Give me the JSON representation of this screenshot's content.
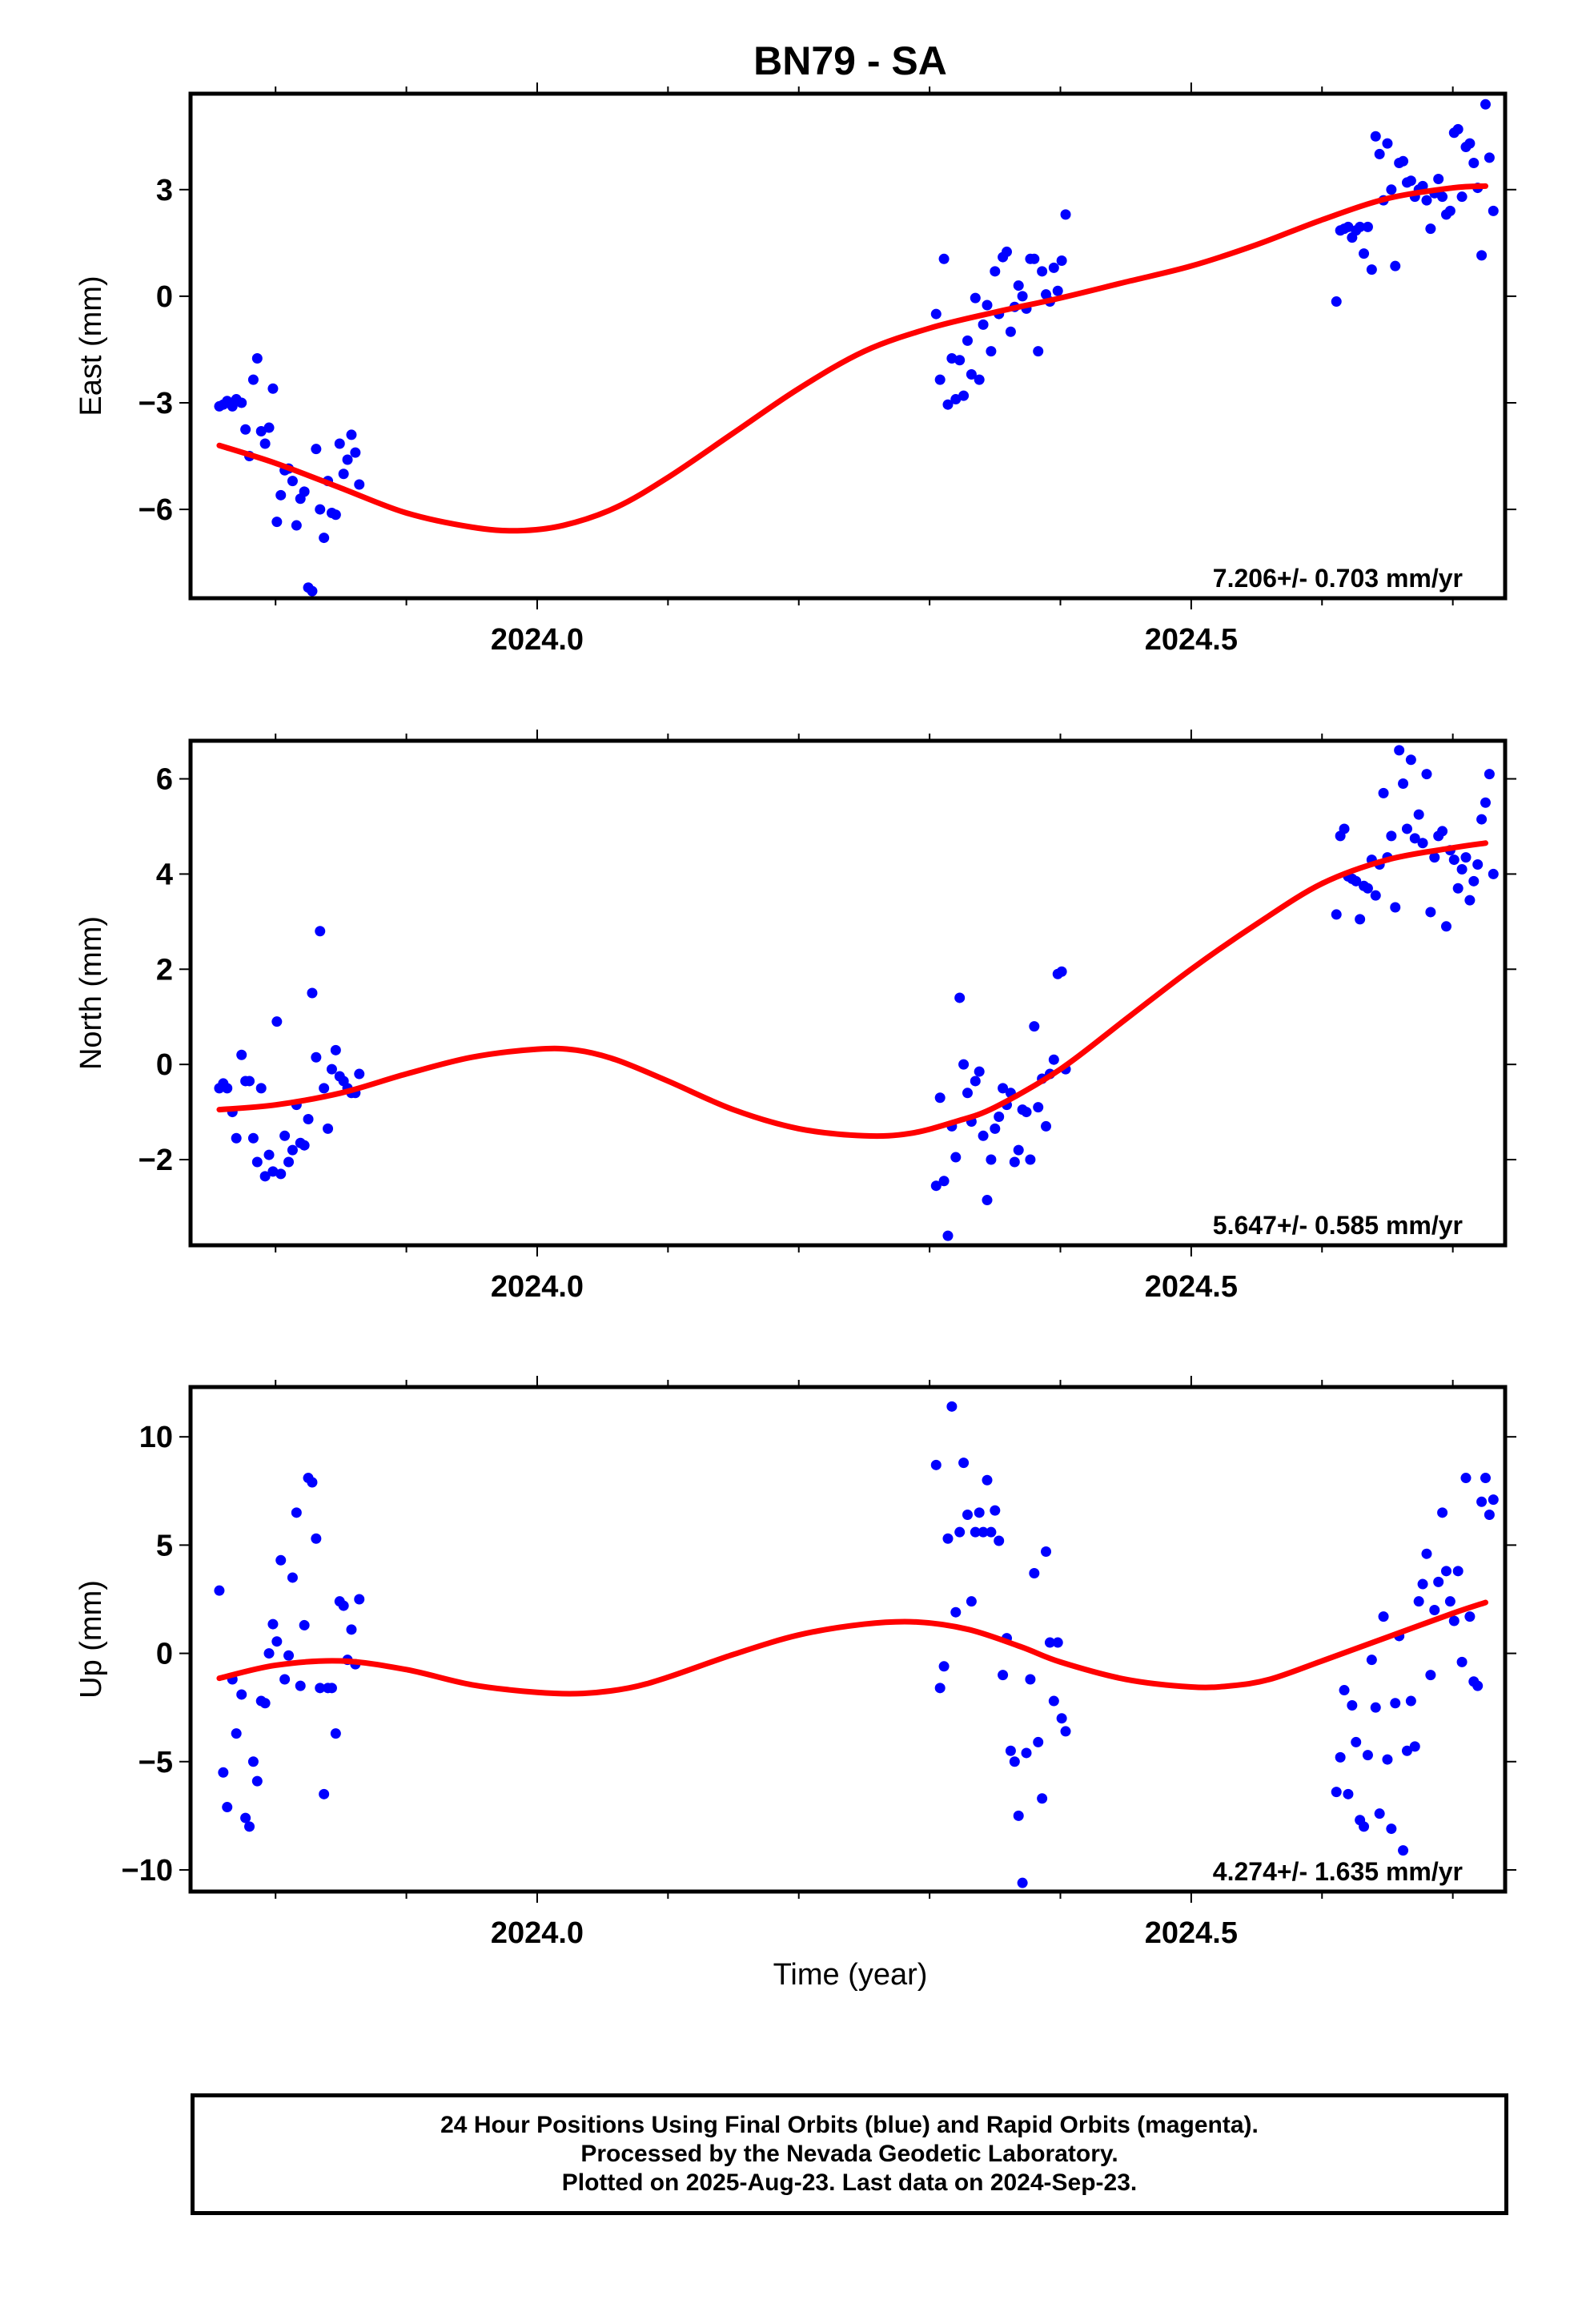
{
  "title": "BN79 - SA",
  "xlabel": "Time (year)",
  "caption": [
    "24 Hour Positions Using Final Orbits (blue) and Rapid Orbits (magenta).",
    "Processed by the Nevada Geodetic Laboratory.",
    "Plotted on 2025-Aug-23. Last data on 2024-Sep-23."
  ],
  "colors": {
    "data": "#0000ff",
    "model": "#ff0000",
    "axes": "#000000"
  },
  "chart_data": [
    {
      "type": "scatter",
      "ylabel": "East (mm)",
      "xlim": [
        2023.735,
        2024.74
      ],
      "ylim": [
        -8.5,
        5.7
      ],
      "xticks": [
        2024.0,
        2024.5
      ],
      "yticks": [
        -6,
        -3,
        0,
        3
      ],
      "ytick_labels": [
        "−6",
        "−3",
        "0",
        "3"
      ],
      "rate_label": "7.206+/- 0.703 mm/yr",
      "model": {
        "x": [
          2023.757,
          2023.8,
          2023.85,
          2023.9,
          2023.95,
          2023.985,
          2024.02,
          2024.06,
          2024.1,
          2024.15,
          2024.2,
          2024.25,
          2024.3,
          2024.35,
          2024.4,
          2024.45,
          2024.5,
          2024.55,
          2024.6,
          2024.65,
          2024.7,
          2024.725
        ],
        "y": [
          -4.2,
          -4.7,
          -5.4,
          -6.1,
          -6.5,
          -6.6,
          -6.45,
          -5.95,
          -5.1,
          -3.85,
          -2.6,
          -1.55,
          -0.9,
          -0.45,
          -0.05,
          0.4,
          0.85,
          1.45,
          2.15,
          2.75,
          3.05,
          3.1
        ]
      },
      "x": [
        2023.757,
        2023.76,
        2023.763,
        2023.767,
        2023.77,
        2023.774,
        2023.777,
        2023.78,
        2023.783,
        2023.786,
        2023.789,
        2023.792,
        2023.795,
        2023.798,
        2023.801,
        2023.804,
        2023.807,
        2023.81,
        2023.813,
        2023.816,
        2023.819,
        2023.822,
        2023.825,
        2023.828,
        2023.831,
        2023.834,
        2023.837,
        2023.84,
        2023.843,
        2023.846,
        2023.849,
        2023.852,
        2023.855,
        2023.858,
        2023.861,
        2023.864,
        2024.305,
        2024.308,
        2024.311,
        2024.314,
        2024.317,
        2024.32,
        2024.323,
        2024.326,
        2024.329,
        2024.332,
        2024.335,
        2024.338,
        2024.341,
        2024.344,
        2024.347,
        2024.35,
        2024.353,
        2024.356,
        2024.359,
        2024.362,
        2024.365,
        2024.368,
        2024.371,
        2024.374,
        2024.377,
        2024.38,
        2024.383,
        2024.386,
        2024.389,
        2024.392,
        2024.395,
        2024.398,
        2024.401,
        2024.404,
        2024.611,
        2024.614,
        2024.617,
        2024.62,
        2024.623,
        2024.626,
        2024.629,
        2024.632,
        2024.635,
        2024.638,
        2024.641,
        2024.644,
        2024.647,
        2024.65,
        2024.653,
        2024.656,
        2024.659,
        2024.662,
        2024.665,
        2024.668,
        2024.671,
        2024.674,
        2024.677,
        2024.68,
        2024.683,
        2024.686,
        2024.689,
        2024.692,
        2024.695,
        2024.698,
        2024.701,
        2024.704,
        2024.707,
        2024.71,
        2024.713,
        2024.716,
        2024.719,
        2024.722,
        2024.725,
        2024.728,
        2024.731
      ],
      "y": [
        -3.1,
        -3.05,
        -2.95,
        -3.1,
        -2.9,
        -3.0,
        -3.75,
        -4.5,
        -2.35,
        -1.75,
        -3.8,
        -4.15,
        -3.7,
        -2.6,
        -6.35,
        -5.6,
        -4.9,
        -4.85,
        -5.2,
        -6.45,
        -5.7,
        -5.5,
        -8.2,
        -8.3,
        -4.3,
        -6.0,
        -6.8,
        -5.2,
        -6.1,
        -6.15,
        -4.15,
        -5.0,
        -4.6,
        -3.9,
        -4.4,
        -5.3,
        -0.5,
        -2.35,
        1.05,
        -3.05,
        -1.75,
        -2.9,
        -1.8,
        -2.8,
        -1.25,
        -2.2,
        -0.05,
        -2.35,
        -0.8,
        -0.25,
        -1.55,
        0.7,
        -0.5,
        1.1,
        1.25,
        -1.0,
        -0.3,
        0.3,
        0.0,
        -0.35,
        1.05,
        1.05,
        -1.55,
        0.7,
        0.05,
        -0.15,
        0.8,
        0.15,
        1.0,
        2.3,
        -0.15,
        1.85,
        1.9,
        1.95,
        1.65,
        1.85,
        1.95,
        1.2,
        1.95,
        0.75,
        4.5,
        4.0,
        2.7,
        4.3,
        3.0,
        0.85,
        3.75,
        3.8,
        3.2,
        3.25,
        2.8,
        3.0,
        3.1,
        2.7,
        1.9,
        2.9,
        3.3,
        2.8,
        2.3,
        2.4,
        4.6,
        4.7,
        2.8,
        4.2,
        4.3,
        3.75,
        3.05,
        1.15,
        5.4,
        3.9,
        2.4
      ],
      "markers": "dots"
    },
    {
      "type": "scatter",
      "ylabel": "North (mm)",
      "xlim": [
        2023.735,
        2024.74
      ],
      "ylim": [
        -3.8,
        6.8
      ],
      "xticks": [
        2024.0,
        2024.5
      ],
      "yticks": [
        -2,
        0,
        2,
        4,
        6
      ],
      "ytick_labels": [
        "−2",
        "0",
        "2",
        "4",
        "6"
      ],
      "rate_label": "5.647+/- 0.585 mm/yr",
      "model": {
        "x": [
          2023.757,
          2023.8,
          2023.85,
          2023.9,
          2023.95,
          2024.0,
          2024.03,
          2024.06,
          2024.1,
          2024.15,
          2024.2,
          2024.25,
          2024.285,
          2024.32,
          2024.35,
          2024.4,
          2024.45,
          2024.5,
          2024.55,
          2024.6,
          2024.65,
          2024.7,
          2024.725
        ],
        "y": [
          -0.95,
          -0.85,
          -0.6,
          -0.2,
          0.15,
          0.32,
          0.3,
          0.1,
          -0.35,
          -0.95,
          -1.35,
          -1.5,
          -1.45,
          -1.2,
          -0.9,
          -0.1,
          0.95,
          2.0,
          2.95,
          3.8,
          4.3,
          4.55,
          4.65
        ]
      },
      "x": [
        2023.757,
        2023.76,
        2023.763,
        2023.767,
        2023.77,
        2023.774,
        2023.777,
        2023.78,
        2023.783,
        2023.786,
        2023.789,
        2023.792,
        2023.795,
        2023.798,
        2023.801,
        2023.804,
        2023.807,
        2023.81,
        2023.813,
        2023.816,
        2023.819,
        2023.822,
        2023.825,
        2023.828,
        2023.831,
        2023.834,
        2023.837,
        2023.84,
        2023.843,
        2023.846,
        2023.849,
        2023.852,
        2023.855,
        2023.858,
        2023.861,
        2023.864,
        2024.305,
        2024.308,
        2024.311,
        2024.314,
        2024.317,
        2024.32,
        2024.323,
        2024.326,
        2024.329,
        2024.332,
        2024.335,
        2024.338,
        2024.341,
        2024.344,
        2024.347,
        2024.35,
        2024.353,
        2024.356,
        2024.359,
        2024.362,
        2024.365,
        2024.368,
        2024.371,
        2024.374,
        2024.377,
        2024.38,
        2024.383,
        2024.386,
        2024.389,
        2024.392,
        2024.395,
        2024.398,
        2024.401,
        2024.404,
        2024.611,
        2024.614,
        2024.617,
        2024.62,
        2024.623,
        2024.626,
        2024.629,
        2024.632,
        2024.635,
        2024.638,
        2024.641,
        2024.644,
        2024.647,
        2024.65,
        2024.653,
        2024.656,
        2024.659,
        2024.662,
        2024.665,
        2024.668,
        2024.671,
        2024.674,
        2024.677,
        2024.68,
        2024.683,
        2024.686,
        2024.689,
        2024.692,
        2024.695,
        2024.698,
        2024.701,
        2024.704,
        2024.707,
        2024.71,
        2024.713,
        2024.716,
        2024.719,
        2024.722,
        2024.725,
        2024.728,
        2024.731
      ],
      "y": [
        -0.5,
        -0.4,
        -0.5,
        -1.0,
        -1.55,
        0.2,
        -0.35,
        -0.35,
        -1.55,
        -2.05,
        -0.5,
        -2.35,
        -1.9,
        -2.25,
        0.9,
        -2.3,
        -1.5,
        -2.05,
        -1.8,
        -0.85,
        -1.65,
        -1.7,
        -1.15,
        1.5,
        0.15,
        2.8,
        -0.5,
        -1.35,
        -0.1,
        0.3,
        -0.25,
        -0.35,
        -0.5,
        -0.6,
        -0.6,
        -0.2,
        -2.55,
        -0.7,
        -2.45,
        -3.6,
        -1.3,
        -1.95,
        1.4,
        0.0,
        -0.6,
        -1.2,
        -0.35,
        -0.15,
        -1.5,
        -2.85,
        -2.0,
        -1.35,
        -1.1,
        -0.5,
        -0.85,
        -0.6,
        -2.05,
        -1.8,
        -0.95,
        -1.0,
        -2.0,
        0.8,
        -0.9,
        -0.3,
        -1.3,
        -0.2,
        0.1,
        1.9,
        1.95,
        -0.1,
        3.15,
        4.8,
        4.95,
        3.95,
        3.9,
        3.85,
        3.05,
        3.75,
        3.7,
        4.3,
        3.55,
        4.2,
        5.7,
        4.35,
        4.8,
        3.3,
        6.6,
        5.9,
        4.95,
        6.4,
        4.75,
        5.25,
        4.65,
        6.1,
        3.2,
        4.35,
        4.8,
        4.9,
        2.9,
        4.5,
        4.3,
        3.7,
        4.1,
        4.35,
        3.45,
        3.85,
        4.2,
        5.15,
        5.5,
        6.1,
        4.0
      ],
      "markers": "dots"
    },
    {
      "type": "scatter",
      "ylabel": "Up (mm)",
      "xlim": [
        2023.735,
        2024.74
      ],
      "ylim": [
        -11,
        12.3
      ],
      "xticks": [
        2024.0,
        2024.5
      ],
      "yticks": [
        -10,
        -5,
        0,
        5,
        10
      ],
      "ytick_labels": [
        "−10",
        "−5",
        "0",
        "5",
        "10"
      ],
      "rate_label": "4.274+/- 1.635 mm/yr",
      "model": {
        "x": [
          2023.757,
          2023.8,
          2023.85,
          2023.9,
          2023.95,
          2024.0,
          2024.035,
          2024.07,
          2024.1,
          2024.15,
          2024.2,
          2024.25,
          2024.29,
          2024.33,
          2024.37,
          2024.4,
          2024.45,
          2024.5,
          2024.53,
          2024.56,
          2024.6,
          2024.65,
          2024.7,
          2024.725
        ],
        "y": [
          -1.15,
          -0.55,
          -0.35,
          -0.75,
          -1.45,
          -1.8,
          -1.85,
          -1.6,
          -1.1,
          -0.05,
          0.85,
          1.35,
          1.45,
          1.1,
          0.3,
          -0.4,
          -1.2,
          -1.55,
          -1.5,
          -1.2,
          -0.35,
          0.75,
          1.85,
          2.35
        ]
      },
      "x": [
        2023.757,
        2023.76,
        2023.763,
        2023.767,
        2023.77,
        2023.774,
        2023.777,
        2023.78,
        2023.783,
        2023.786,
        2023.789,
        2023.792,
        2023.795,
        2023.798,
        2023.801,
        2023.804,
        2023.807,
        2023.81,
        2023.813,
        2023.816,
        2023.819,
        2023.822,
        2023.825,
        2023.828,
        2023.831,
        2023.834,
        2023.837,
        2023.84,
        2023.843,
        2023.846,
        2023.849,
        2023.852,
        2023.855,
        2023.858,
        2023.861,
        2023.864,
        2024.305,
        2024.308,
        2024.311,
        2024.314,
        2024.317,
        2024.32,
        2024.323,
        2024.326,
        2024.329,
        2024.332,
        2024.335,
        2024.338,
        2024.341,
        2024.344,
        2024.347,
        2024.35,
        2024.353,
        2024.356,
        2024.359,
        2024.362,
        2024.365,
        2024.368,
        2024.371,
        2024.374,
        2024.377,
        2024.38,
        2024.383,
        2024.386,
        2024.389,
        2024.392,
        2024.395,
        2024.398,
        2024.401,
        2024.404,
        2024.611,
        2024.614,
        2024.617,
        2024.62,
        2024.623,
        2024.626,
        2024.629,
        2024.632,
        2024.635,
        2024.638,
        2024.641,
        2024.644,
        2024.647,
        2024.65,
        2024.653,
        2024.656,
        2024.659,
        2024.662,
        2024.665,
        2024.668,
        2024.671,
        2024.674,
        2024.677,
        2024.68,
        2024.683,
        2024.686,
        2024.689,
        2024.692,
        2024.695,
        2024.698,
        2024.701,
        2024.704,
        2024.707,
        2024.71,
        2024.713,
        2024.716,
        2024.719,
        2024.722,
        2024.725,
        2024.728,
        2024.731
      ],
      "y": [
        2.9,
        -5.5,
        -7.1,
        -1.2,
        -3.7,
        -1.9,
        -7.6,
        -8.0,
        -5.0,
        -5.9,
        -2.2,
        -2.3,
        0.0,
        1.35,
        0.55,
        4.3,
        -1.2,
        -0.1,
        3.5,
        6.5,
        -1.5,
        1.3,
        8.1,
        7.9,
        5.3,
        -1.6,
        -6.5,
        -1.6,
        -1.6,
        -3.7,
        2.4,
        2.2,
        -0.3,
        1.1,
        -0.5,
        2.5,
        8.7,
        -1.6,
        -0.6,
        5.3,
        11.4,
        1.9,
        5.6,
        8.8,
        6.4,
        2.4,
        5.6,
        6.5,
        5.6,
        8.0,
        5.6,
        6.6,
        5.2,
        -1.0,
        0.7,
        -4.5,
        -5.0,
        -7.5,
        -10.6,
        -4.6,
        -1.2,
        3.7,
        -4.1,
        -6.7,
        4.7,
        0.5,
        -2.2,
        0.5,
        -3.0,
        -3.6,
        -6.4,
        -4.8,
        -1.7,
        -6.5,
        -2.4,
        -4.1,
        -7.7,
        -8.0,
        -4.7,
        -0.3,
        -2.5,
        -7.4,
        1.7,
        -4.9,
        -8.1,
        -2.3,
        0.8,
        -9.1,
        -4.5,
        -2.2,
        -4.3,
        2.4,
        3.2,
        4.6,
        -1.0,
        2.0,
        3.3,
        6.5,
        3.8,
        2.4,
        1.5,
        3.8,
        -0.4,
        8.1,
        1.7,
        -1.3,
        -1.5,
        7.0,
        8.1,
        6.4,
        7.1
      ],
      "markers": "dots"
    }
  ]
}
